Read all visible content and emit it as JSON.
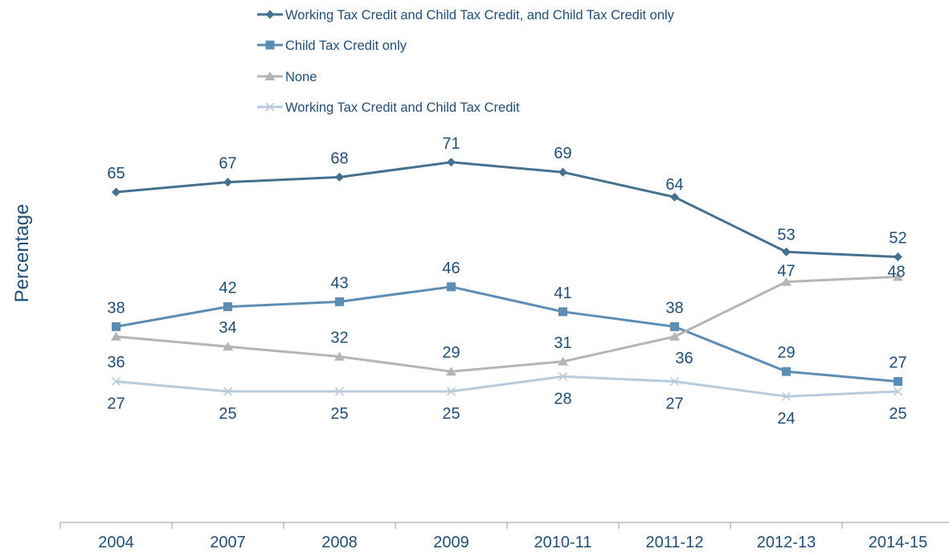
{
  "chart_data": {
    "type": "line",
    "categories": [
      "2004",
      "2007",
      "2008",
      "2009",
      "2010-11",
      "2011-12",
      "2012-13",
      "2014-15"
    ],
    "ylabel": "Percentage",
    "xlabel": "",
    "title": "",
    "grid": false,
    "legend_position": "top-center",
    "series": [
      {
        "name": "Working Tax Credit and Child Tax Credit, and Child Tax Credit only",
        "values": [
          65,
          67,
          68,
          71,
          69,
          64,
          53,
          52
        ],
        "color": "#46708f",
        "marker": "diamond",
        "label_position": "above"
      },
      {
        "name": "Child Tax Credit only",
        "values": [
          38,
          42,
          43,
          46,
          41,
          38,
          29,
          27
        ],
        "color": "#5b8db5",
        "marker": "square",
        "label_position": "above"
      },
      {
        "name": "None",
        "values": [
          36,
          34,
          32,
          29,
          31,
          36,
          47,
          48
        ],
        "color": "#b5b5b5",
        "marker": "triangle",
        "label_position": "mixed"
      },
      {
        "name": "Working Tax Credit and Child Tax Credit",
        "values": [
          27,
          25,
          25,
          25,
          28,
          27,
          24,
          25
        ],
        "color": "#b8cbdc",
        "marker": "x",
        "label_position": "below"
      }
    ]
  },
  "colors": {
    "label_text": "#1f4e79",
    "axis_line": "#999999"
  }
}
